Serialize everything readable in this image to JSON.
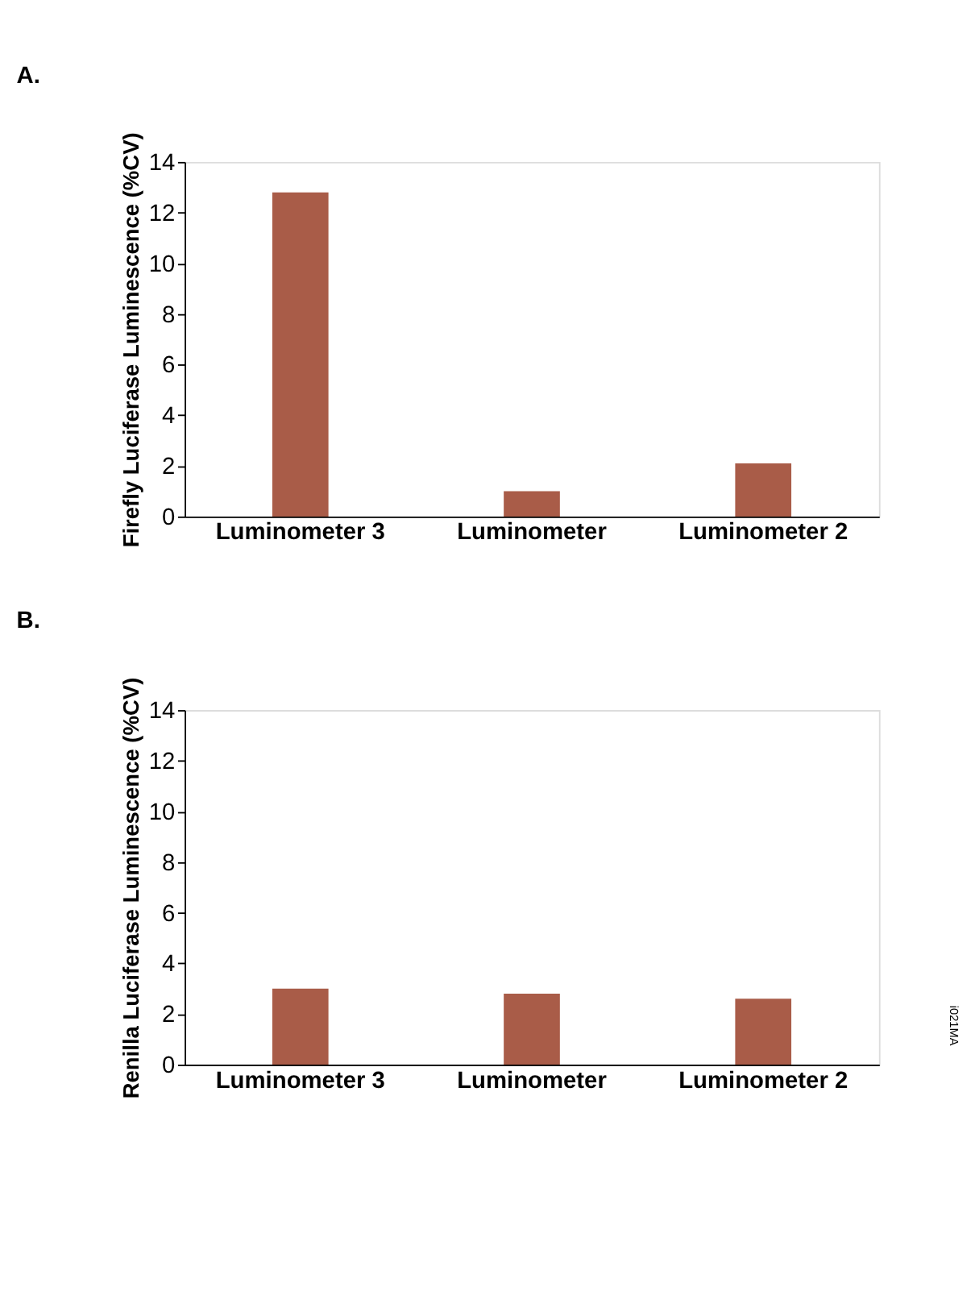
{
  "chart_data": [
    {
      "type": "bar",
      "title": "A.",
      "ylabel": "Firefly Luciferase Luminescence (%CV)",
      "categories": [
        "Luminometer 3",
        "Luminometer",
        "Luminometer 2"
      ],
      "values": [
        12.8,
        1.0,
        2.1
      ],
      "color": "#a95c48",
      "ylim": [
        0,
        14
      ],
      "yticks": [
        0,
        2,
        4,
        6,
        8,
        10,
        12,
        14
      ],
      "grid": false
    },
    {
      "type": "bar",
      "title": "B.",
      "ylabel": "Renilla Luciferase Luminescence (%CV)",
      "categories": [
        "Luminometer 3",
        "Luminometer",
        "Luminometer 2"
      ],
      "values": [
        3.0,
        2.8,
        2.6
      ],
      "color": "#a95c48",
      "ylim": [
        0,
        14
      ],
      "yticks": [
        0,
        2,
        4,
        6,
        8,
        10,
        12,
        14
      ],
      "grid": false,
      "annotations": [
        "i021MA"
      ]
    }
  ]
}
